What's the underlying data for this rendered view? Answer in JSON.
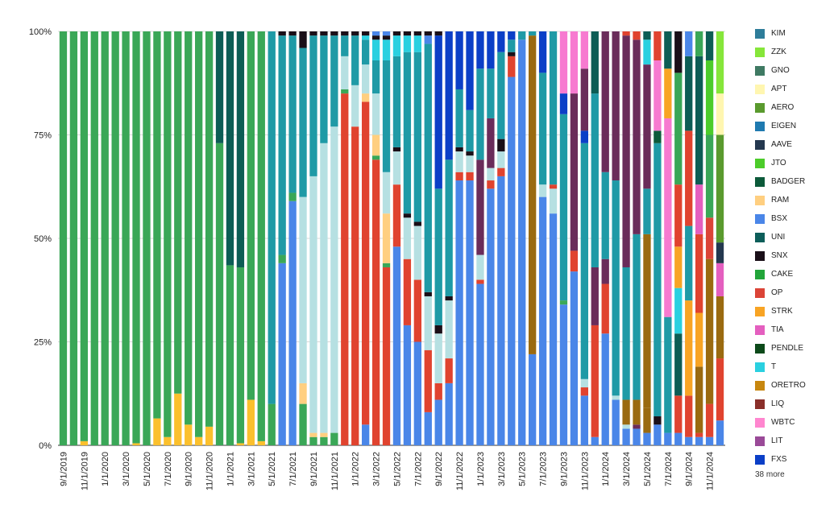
{
  "chart_data": {
    "type": "bar",
    "stacked": true,
    "percent": true,
    "y_ticks": [
      "0%",
      "25%",
      "50%",
      "75%",
      "100%"
    ],
    "ylim": [
      0,
      100
    ],
    "grid": true,
    "legend_position": "right",
    "x_ticks": [
      "9/1/2019",
      "11/1/2019",
      "1/1/2020",
      "3/1/2020",
      "5/1/2020",
      "7/1/2020",
      "9/1/2020",
      "11/1/2020",
      "1/1/2021",
      "3/1/2021",
      "5/1/2021",
      "7/1/2021",
      "9/1/2021",
      "11/1/2021",
      "1/1/2022",
      "3/1/2022",
      "5/1/2022",
      "7/1/2022",
      "9/1/2022",
      "11/1/2022",
      "1/1/2023",
      "3/1/2023",
      "5/1/2023",
      "7/1/2023",
      "9/1/2023",
      "11/1/2023",
      "1/1/2024",
      "3/1/2024",
      "5/1/2024",
      "7/1/2024",
      "9/1/2024",
      "11/1/2024"
    ],
    "periods": 64,
    "colors": {
      "KIM": "#2e7d9a",
      "ZZK": "#86e63a",
      "GNO": "#3f7a63",
      "APT": "#fff6b0",
      "AERO": "#5a9a2e",
      "EIGEN": "#1f7ab0",
      "AAVE": "#24384f",
      "JTO": "#4ccc2a",
      "BADGER": "#0c5a3a",
      "RAM": "#ffcf80",
      "BSX": "#4a86e8",
      "UNI": "#0d5e5a",
      "SNX": "#1a0f18",
      "CAKE": "#22a53a",
      "OP": "#db4437",
      "STRK": "#f8a424",
      "TIA": "#e45fbf",
      "PENDLE": "#0d4a1a",
      "T": "#2ad0e0",
      "ORETRO": "#c7870f",
      "LIQ": "#8a2f2a",
      "WBTC": "#ff86cf",
      "LIT": "#9a4a98",
      "FXS": "#0b3fc7",
      "GREEN_BASE": "#3aa757",
      "YELLOW": "#fbc02d",
      "LIGHT_BLUE": "#b6e0e2",
      "TEAL": "#1f9aa6",
      "DARK_TEAL": "#0c5d55",
      "BLUE": "#4a86e8",
      "RED": "#e0432f",
      "BROWN": "#9a6a10",
      "PURPLE": "#6a2c5a",
      "PINK": "#f77ad0"
    },
    "legend": [
      "KIM",
      "ZZK",
      "GNO",
      "APT",
      "AERO",
      "EIGEN",
      "AAVE",
      "JTO",
      "BADGER",
      "RAM",
      "BSX",
      "UNI",
      "SNX",
      "CAKE",
      "OP",
      "STRK",
      "TIA",
      "PENDLE",
      "T",
      "ORETRO",
      "LIQ",
      "WBTC",
      "LIT",
      "FXS"
    ],
    "legend_more": "38 more",
    "bars": [
      [
        [
          "GREEN_BASE",
          100
        ]
      ],
      [
        [
          "GREEN_BASE",
          100
        ]
      ],
      [
        [
          "YELLOW",
          1
        ],
        [
          "GREEN_BASE",
          99
        ]
      ],
      [
        [
          "GREEN_BASE",
          100
        ]
      ],
      [
        [
          "GREEN_BASE",
          100
        ]
      ],
      [
        [
          "GREEN_BASE",
          100
        ]
      ],
      [
        [
          "GREEN_BASE",
          100
        ]
      ],
      [
        [
          "YELLOW",
          0.5
        ],
        [
          "GREEN_BASE",
          99.5
        ]
      ],
      [
        [
          "GREEN_BASE",
          100
        ]
      ],
      [
        [
          "YELLOW",
          6.5
        ],
        [
          "GREEN_BASE",
          93.5
        ]
      ],
      [
        [
          "YELLOW",
          2
        ],
        [
          "GREEN_BASE",
          98
        ]
      ],
      [
        [
          "YELLOW",
          12.5
        ],
        [
          "GREEN_BASE",
          87.5
        ]
      ],
      [
        [
          "YELLOW",
          5
        ],
        [
          "GREEN_BASE",
          95
        ]
      ],
      [
        [
          "YELLOW",
          2
        ],
        [
          "GREEN_BASE",
          98
        ]
      ],
      [
        [
          "YELLOW",
          4.5
        ],
        [
          "GREEN_BASE",
          95.5
        ]
      ],
      [
        [
          "GREEN_BASE",
          73
        ],
        [
          "DARK_TEAL",
          27
        ]
      ],
      [
        [
          "GREEN_BASE",
          43.5
        ],
        [
          "DARK_TEAL",
          56.5
        ]
      ],
      [
        [
          "YELLOW",
          0.5
        ],
        [
          "GREEN_BASE",
          42.5
        ],
        [
          "DARK_TEAL",
          57
        ]
      ],
      [
        [
          "YELLOW",
          11
        ],
        [
          "GREEN_BASE",
          89
        ]
      ],
      [
        [
          "YELLOW",
          1
        ],
        [
          "GREEN_BASE",
          99
        ]
      ],
      [
        [
          "GREEN_BASE",
          10
        ],
        [
          "TEAL",
          90
        ]
      ],
      [
        [
          "BLUE",
          44
        ],
        [
          "GREEN_BASE",
          2
        ],
        [
          "TEAL",
          53
        ],
        [
          "SNX",
          1
        ]
      ],
      [
        [
          "BLUE",
          59
        ],
        [
          "GREEN_BASE",
          2
        ],
        [
          "TEAL",
          38
        ],
        [
          "SNX",
          1
        ]
      ],
      [
        [
          "GREEN_BASE",
          10
        ],
        [
          "RAM",
          5
        ],
        [
          "LIGHT_BLUE",
          45
        ],
        [
          "TEAL",
          36
        ],
        [
          "SNX",
          4
        ]
      ],
      [
        [
          "GREEN_BASE",
          2
        ],
        [
          "RAM",
          1
        ],
        [
          "LIGHT_BLUE",
          62
        ],
        [
          "TEAL",
          34
        ],
        [
          "SNX",
          1
        ]
      ],
      [
        [
          "GREEN_BASE",
          2
        ],
        [
          "RAM",
          1
        ],
        [
          "LIGHT_BLUE",
          70
        ],
        [
          "TEAL",
          26
        ],
        [
          "SNX",
          1
        ]
      ],
      [
        [
          "GREEN_BASE",
          3
        ],
        [
          "LIGHT_BLUE",
          74
        ],
        [
          "TEAL",
          22
        ],
        [
          "SNX",
          1
        ]
      ],
      [
        [
          "RED",
          85
        ],
        [
          "GREEN_BASE",
          1
        ],
        [
          "LIGHT_BLUE",
          8
        ],
        [
          "TEAL",
          5
        ],
        [
          "SNX",
          1
        ]
      ],
      [
        [
          "RED",
          77
        ],
        [
          "LIGHT_BLUE",
          10
        ],
        [
          "TEAL",
          12
        ],
        [
          "SNX",
          1
        ]
      ],
      [
        [
          "BLUE",
          5
        ],
        [
          "RED",
          78
        ],
        [
          "RAM",
          2
        ],
        [
          "LIGHT_BLUE",
          7
        ],
        [
          "TEAL",
          6
        ],
        [
          "T",
          1
        ],
        [
          "SNX",
          1
        ]
      ],
      [
        [
          "RED",
          69
        ],
        [
          "GREEN_BASE",
          1
        ],
        [
          "RAM",
          5
        ],
        [
          "LIGHT_BLUE",
          10
        ],
        [
          "TEAL",
          8
        ],
        [
          "T",
          5
        ],
        [
          "SNX",
          1
        ],
        [
          "BLUE",
          1
        ]
      ],
      [
        [
          "RED",
          43
        ],
        [
          "GREEN_BASE",
          1
        ],
        [
          "RAM",
          12
        ],
        [
          "LIGHT_BLUE",
          10
        ],
        [
          "TEAL",
          27
        ],
        [
          "T",
          5
        ],
        [
          "SNX",
          1
        ],
        [
          "BLUE",
          1
        ]
      ],
      [
        [
          "BLUE",
          48
        ],
        [
          "RED",
          15
        ],
        [
          "LIGHT_BLUE",
          8
        ],
        [
          "SNX",
          1
        ],
        [
          "TEAL",
          22
        ],
        [
          "T",
          5
        ],
        [
          "SNX",
          1
        ]
      ],
      [
        [
          "BLUE",
          29
        ],
        [
          "RED",
          16
        ],
        [
          "LIGHT_BLUE",
          10
        ],
        [
          "SNX",
          1
        ],
        [
          "TEAL",
          39
        ],
        [
          "T",
          4
        ],
        [
          "SNX",
          1
        ]
      ],
      [
        [
          "BLUE",
          25
        ],
        [
          "RED",
          15
        ],
        [
          "LIGHT_BLUE",
          13
        ],
        [
          "SNX",
          1
        ],
        [
          "TEAL",
          41
        ],
        [
          "T",
          4
        ],
        [
          "SNX",
          1
        ]
      ],
      [
        [
          "BLUE",
          8
        ],
        [
          "RED",
          15
        ],
        [
          "LIGHT_BLUE",
          13
        ],
        [
          "SNX",
          1
        ],
        [
          "TEAL",
          60
        ],
        [
          "BLUE",
          2
        ],
        [
          "SNX",
          1
        ]
      ],
      [
        [
          "BLUE",
          11
        ],
        [
          "RED",
          4
        ],
        [
          "LIGHT_BLUE",
          12
        ],
        [
          "SNX",
          2
        ],
        [
          "TEAL",
          33
        ],
        [
          "FXS",
          37
        ],
        [
          "SNX",
          1
        ]
      ],
      [
        [
          "BLUE",
          15
        ],
        [
          "RED",
          6
        ],
        [
          "LIGHT_BLUE",
          14
        ],
        [
          "SNX",
          1
        ],
        [
          "TEAL",
          33
        ],
        [
          "FXS",
          31
        ]
      ],
      [
        [
          "BLUE",
          64
        ],
        [
          "RED",
          2
        ],
        [
          "LIGHT_BLUE",
          5
        ],
        [
          "SNX",
          1
        ],
        [
          "TEAL",
          14
        ],
        [
          "FXS",
          14
        ]
      ],
      [
        [
          "BLUE",
          64
        ],
        [
          "RED",
          2
        ],
        [
          "LIGHT_BLUE",
          4
        ],
        [
          "SNX",
          1
        ],
        [
          "TEAL",
          10
        ],
        [
          "FXS",
          19
        ]
      ],
      [
        [
          "BLUE",
          39
        ],
        [
          "RED",
          1
        ],
        [
          "LIGHT_BLUE",
          6
        ],
        [
          "PURPLE",
          23
        ],
        [
          "TEAL",
          22
        ],
        [
          "FXS",
          9
        ]
      ],
      [
        [
          "BLUE",
          62
        ],
        [
          "RED",
          2
        ],
        [
          "LIGHT_BLUE",
          3
        ],
        [
          "PURPLE",
          12
        ],
        [
          "TEAL",
          12
        ],
        [
          "FXS",
          9
        ]
      ],
      [
        [
          "BLUE",
          65
        ],
        [
          "RED",
          2
        ],
        [
          "LIGHT_BLUE",
          4
        ],
        [
          "SNX",
          3
        ],
        [
          "TEAL",
          21
        ],
        [
          "FXS",
          5
        ]
      ],
      [
        [
          "BLUE",
          89
        ],
        [
          "RED",
          5
        ],
        [
          "SNX",
          1
        ],
        [
          "TEAL",
          3
        ],
        [
          "FXS",
          2
        ]
      ],
      [
        [
          "BLUE",
          98
        ],
        [
          "TEAL",
          2
        ]
      ],
      [
        [
          "BLUE",
          22
        ],
        [
          "BROWN",
          77
        ],
        [
          "TEAL",
          1
        ]
      ],
      [
        [
          "BLUE",
          60
        ],
        [
          "LIGHT_BLUE",
          3
        ],
        [
          "TEAL",
          27
        ],
        [
          "FXS",
          10
        ]
      ],
      [
        [
          "BLUE",
          56
        ],
        [
          "LIGHT_BLUE",
          6
        ],
        [
          "RED",
          1
        ],
        [
          "TEAL",
          37
        ]
      ],
      [
        [
          "BLUE",
          34
        ],
        [
          "GREEN_BASE",
          1
        ],
        [
          "TEAL",
          45
        ],
        [
          "FXS",
          5
        ],
        [
          "PINK",
          15
        ]
      ],
      [
        [
          "BLUE",
          42
        ],
        [
          "RED",
          5
        ],
        [
          "PURPLE",
          38
        ],
        [
          "PINK",
          15
        ]
      ],
      [
        [
          "BLUE",
          12
        ],
        [
          "RED",
          2
        ],
        [
          "LIGHT_BLUE",
          2
        ],
        [
          "TEAL",
          57
        ],
        [
          "FXS",
          3
        ],
        [
          "PURPLE",
          15
        ],
        [
          "PINK",
          9
        ]
      ],
      [
        [
          "BLUE",
          2
        ],
        [
          "RED",
          27
        ],
        [
          "PURPLE",
          14
        ],
        [
          "TEAL",
          42
        ],
        [
          "DARK_TEAL",
          15
        ]
      ],
      [
        [
          "BLUE",
          27
        ],
        [
          "RED",
          12
        ],
        [
          "PURPLE",
          6
        ],
        [
          "TEAL",
          21
        ],
        [
          "PURPLE",
          34
        ]
      ],
      [
        [
          "BLUE",
          11
        ],
        [
          "LIGHT_BLUE",
          1
        ],
        [
          "TEAL",
          52
        ],
        [
          "PURPLE",
          36
        ]
      ],
      [
        [
          "BLUE",
          4
        ],
        [
          "LIGHT_BLUE",
          1
        ],
        [
          "BROWN",
          6
        ],
        [
          "TEAL",
          32
        ],
        [
          "PURPLE",
          56
        ],
        [
          "RED",
          1
        ]
      ],
      [
        [
          "BLUE",
          4
        ],
        [
          "PURPLE",
          1
        ],
        [
          "BROWN",
          6
        ],
        [
          "TEAL",
          40
        ],
        [
          "PURPLE",
          47
        ],
        [
          "RED",
          2
        ]
      ],
      [
        [
          "BLUE",
          3
        ],
        [
          "BROWN",
          6
        ],
        [
          "BROWN",
          42
        ],
        [
          "TEAL",
          11
        ],
        [
          "PURPLE",
          30
        ],
        [
          "T",
          6
        ],
        [
          "DARK_TEAL",
          2
        ]
      ],
      [
        [
          "BLUE",
          5
        ],
        [
          "SNX",
          2
        ],
        [
          "TEAL",
          66
        ],
        [
          "BADGER",
          3
        ],
        [
          "PINK",
          17
        ],
        [
          "RED",
          7
        ]
      ],
      [
        [
          "BLUE",
          3
        ],
        [
          "TEAL",
          28
        ],
        [
          "PINK",
          48
        ],
        [
          "STRK",
          12
        ],
        [
          "DARK_TEAL",
          9
        ]
      ],
      [
        [
          "BLUE",
          3
        ],
        [
          "RED",
          9
        ],
        [
          "DARK_TEAL",
          15
        ],
        [
          "T",
          11
        ],
        [
          "STRK",
          10
        ],
        [
          "RED",
          15
        ],
        [
          "GREEN_BASE",
          27
        ],
        [
          "SNX",
          10
        ]
      ],
      [
        [
          "BLUE",
          2
        ],
        [
          "RED",
          10
        ],
        [
          "STRK",
          23
        ],
        [
          "TEAL",
          18
        ],
        [
          "RED",
          23
        ],
        [
          "DARK_TEAL",
          18
        ],
        [
          "BLUE",
          6
        ]
      ],
      [
        [
          "BLUE",
          2
        ],
        [
          "RED",
          1
        ],
        [
          "BROWN",
          16
        ],
        [
          "STRK",
          13
        ],
        [
          "RED",
          19
        ],
        [
          "TIA",
          12
        ],
        [
          "DARK_TEAL",
          31
        ],
        [
          "GREEN_BASE",
          6
        ]
      ],
      [
        [
          "BLUE",
          2
        ],
        [
          "RED",
          8
        ],
        [
          "BROWN",
          35
        ],
        [
          "OP",
          10
        ],
        [
          "GREEN_BASE",
          20
        ],
        [
          "JTO",
          18
        ],
        [
          "DARK_TEAL",
          7
        ]
      ],
      [
        [
          "BLUE",
          6
        ],
        [
          "RED",
          15
        ],
        [
          "BROWN",
          15
        ],
        [
          "TIA",
          8
        ],
        [
          "AAVE",
          5
        ],
        [
          "AERO",
          26
        ],
        [
          "APT",
          10
        ],
        [
          "ZZK",
          15
        ]
      ]
    ]
  }
}
